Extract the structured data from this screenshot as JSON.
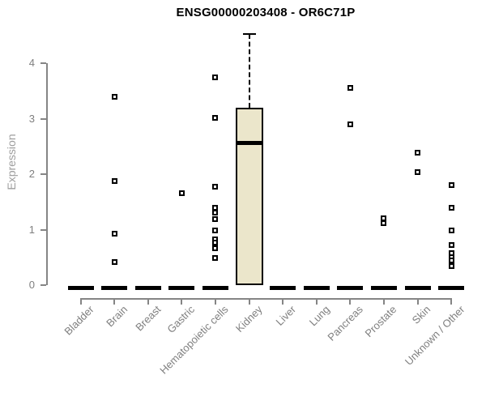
{
  "chart_data": {
    "type": "boxplot",
    "title": "ENSG00000203408 - OR6C71P",
    "ylabel": "Expression",
    "xlabel": "",
    "ylim": [
      0,
      4.6
    ],
    "yticks": [
      0,
      1,
      2,
      3,
      4
    ],
    "grid": false,
    "legend": null,
    "categories": [
      "Bladder",
      "Brain",
      "Breast",
      "Gastric",
      "Hematopoietic cells",
      "Kidney",
      "Liver",
      "Lung",
      "Pancreas",
      "Prostate",
      "Skin",
      "Unknown / Other"
    ],
    "colors": {
      "box_fill": "#ebe6cb",
      "box_border": "#000000",
      "median": "#000000",
      "whisker": "#000000",
      "axis": "#858585",
      "tick_label": "#7f7f7f",
      "axis_label": "#9e9e9e",
      "title": "#000000",
      "outlier_fill": "#ffffff",
      "outlier_border": "#000000",
      "background": "#ffffff"
    },
    "boxes": [
      {
        "category": "Bladder",
        "q1": 0,
        "median": 0,
        "q3": 0,
        "whisker_low": 0,
        "whisker_high": 0,
        "outliers": []
      },
      {
        "category": "Brain",
        "q1": 0,
        "median": 0,
        "q3": 0,
        "whisker_low": 0,
        "whisker_high": 0,
        "outliers": [
          3.39,
          1.88,
          0.93,
          0.41
        ]
      },
      {
        "category": "Breast",
        "q1": 0,
        "median": 0,
        "q3": 0,
        "whisker_low": 0,
        "whisker_high": 0,
        "outliers": []
      },
      {
        "category": "Gastric",
        "q1": 0,
        "median": 0,
        "q3": 0,
        "whisker_low": 0,
        "whisker_high": 0,
        "outliers": [
          1.66
        ]
      },
      {
        "category": "Hematopoietic cells",
        "q1": 0,
        "median": 0,
        "q3": 0,
        "whisker_low": 0,
        "whisker_high": 0,
        "outliers": [
          3.75,
          3.01,
          1.77,
          1.4,
          1.3,
          1.19,
          0.98,
          0.83,
          0.77,
          0.66,
          0.49
        ]
      },
      {
        "category": "Kidney",
        "q1": 0,
        "median": 2.57,
        "q3": 3.2,
        "whisker_low": 0,
        "whisker_high": 4.53,
        "outliers": []
      },
      {
        "category": "Liver",
        "q1": 0,
        "median": 0,
        "q3": 0,
        "whisker_low": 0,
        "whisker_high": 0,
        "outliers": []
      },
      {
        "category": "Lung",
        "q1": 0,
        "median": 0,
        "q3": 0,
        "whisker_low": 0,
        "whisker_high": 0,
        "outliers": []
      },
      {
        "category": "Pancreas",
        "q1": 0,
        "median": 0,
        "q3": 0,
        "whisker_low": 0,
        "whisker_high": 0,
        "outliers": [
          3.56,
          2.9
        ]
      },
      {
        "category": "Prostate",
        "q1": 0,
        "median": 0,
        "q3": 0,
        "whisker_low": 0,
        "whisker_high": 0,
        "outliers": [
          1.21,
          1.12
        ]
      },
      {
        "category": "Skin",
        "q1": 0,
        "median": 0,
        "q3": 0,
        "whisker_low": 0,
        "whisker_high": 0,
        "outliers": [
          2.38,
          2.03
        ]
      },
      {
        "category": "Unknown / Other",
        "q1": 0,
        "median": 0,
        "q3": 0,
        "whisker_low": 0,
        "whisker_high": 0,
        "outliers": [
          1.81,
          1.39,
          0.98,
          0.72,
          0.57,
          0.51,
          0.45,
          0.34
        ]
      }
    ]
  }
}
